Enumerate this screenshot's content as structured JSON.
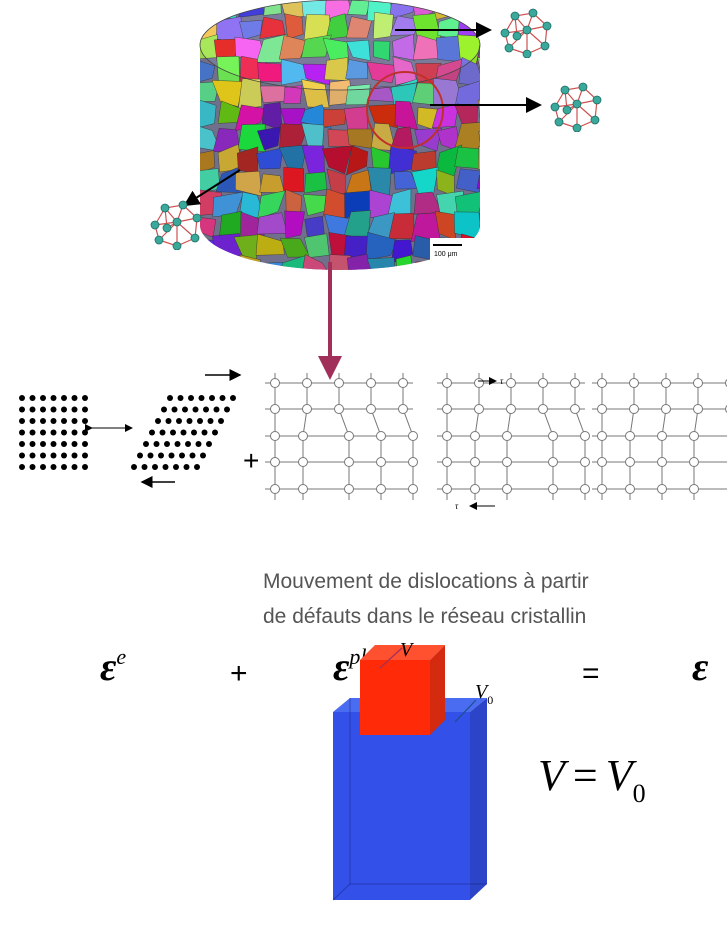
{
  "scale_bar": "100 μm",
  "shear_labels": {
    "top": "τ",
    "bottom": "τ"
  },
  "lattice_plus": "+",
  "caption": {
    "line1": "Mouvement de dislocations à partir",
    "line2": "de défauts dans le réseau cristallin"
  },
  "equation": {
    "elastic": {
      "symbol": "ε",
      "sup": "e"
    },
    "plus": "+",
    "plastic": {
      "symbol": "ε",
      "sup": "pl"
    },
    "equals": "=",
    "total": "ε"
  },
  "volume": {
    "label_v": "V",
    "label_v0": {
      "symbol": "V",
      "sub": "0"
    },
    "formula": {
      "lhs": "V",
      "eq": "=",
      "rhs": "V",
      "rhs_sub": "0"
    }
  }
}
